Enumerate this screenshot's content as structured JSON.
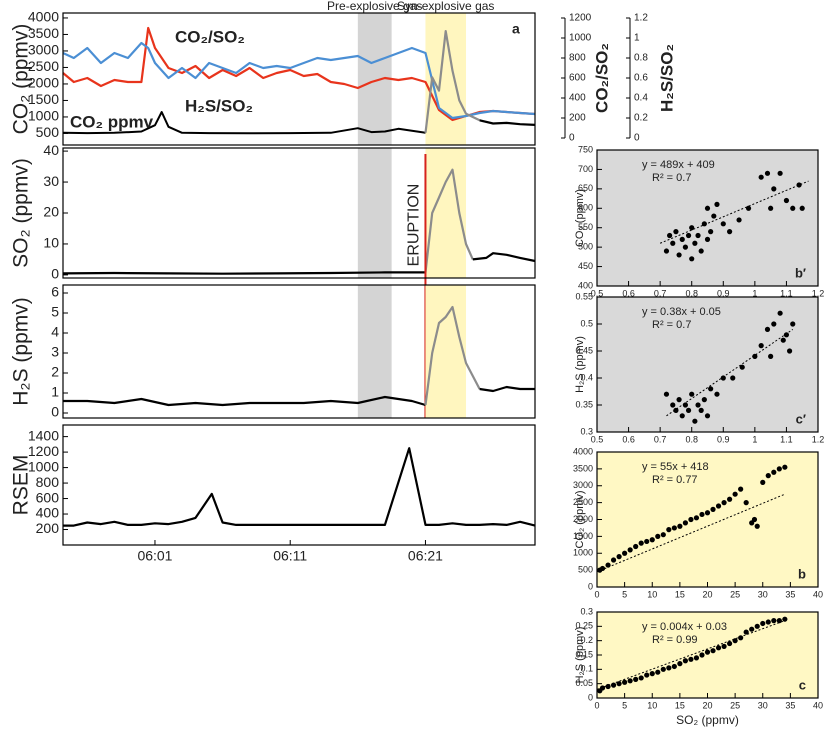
{
  "chart_data": [
    {
      "type": "line",
      "ylabel": "CO₂ (ppmv)",
      "panel_label": "a",
      "xlim": [
        354.2,
        389.1
      ],
      "ylim": [
        150,
        4150
      ],
      "yticks": [
        500,
        1000,
        1500,
        2000,
        2500,
        3000,
        3500,
        4000
      ],
      "y2lim": [
        -70,
        1250
      ],
      "y2ticks": [
        0,
        200,
        400,
        600,
        800,
        1000,
        1200
      ],
      "y2label": "CO₂/SO₂",
      "y3lim": [
        -0.07,
        1.25
      ],
      "y3ticks": [
        0,
        0.2,
        0.4,
        0.6,
        0.8,
        1,
        1.2
      ],
      "y3label": "H₂S/SO₂",
      "spans": [
        {
          "label": "Pre-explosive gas",
          "x": [
            376,
            378.5
          ],
          "color": "#d4d4d4"
        },
        {
          "label": "Syn-explosive gas",
          "x": [
            381,
            384
          ],
          "color": "#fff6bf"
        }
      ],
      "series": [
        {
          "name": "CO₂/SO₂",
          "color": "#e8341c",
          "axis": "y2",
          "x": [
            354.2,
            355,
            356,
            357,
            358,
            359,
            360,
            360.5,
            361,
            362,
            363,
            364,
            365,
            366,
            367,
            368,
            369,
            370,
            371,
            372,
            373,
            374,
            375,
            376,
            377,
            378,
            379,
            380,
            381,
            382,
            383,
            384,
            385,
            386,
            387,
            388,
            389.1
          ],
          "values": [
            650,
            560,
            600,
            520,
            580,
            560,
            560,
            1100,
            900,
            700,
            650,
            720,
            600,
            680,
            620,
            700,
            600,
            650,
            680,
            620,
            640,
            560,
            540,
            500,
            560,
            600,
            580,
            600,
            560,
            280,
            180,
            220,
            260,
            270,
            260,
            250,
            240
          ]
        },
        {
          "name": "H₂S/SO₂",
          "color": "#4b8fd4",
          "axis": "y3",
          "x": [
            354.2,
            355,
            356,
            357,
            358,
            359,
            360,
            360.5,
            361,
            362,
            363,
            364,
            365,
            366,
            367,
            368,
            369,
            370,
            371,
            372,
            373,
            374,
            375,
            376,
            377,
            378,
            379,
            380,
            381,
            382,
            383,
            384,
            385,
            386,
            387,
            388,
            389.1
          ],
          "values": [
            0.85,
            0.8,
            0.9,
            0.75,
            0.85,
            0.8,
            0.95,
            0.9,
            0.75,
            0.6,
            0.7,
            0.6,
            0.75,
            0.7,
            0.65,
            0.75,
            0.7,
            0.72,
            0.7,
            0.75,
            0.8,
            0.78,
            0.8,
            0.82,
            0.75,
            0.8,
            0.85,
            0.9,
            0.85,
            0.3,
            0.2,
            0.22,
            0.25,
            0.27,
            0.26,
            0.25,
            0.24
          ]
        },
        {
          "name": "CO₂ ppmv",
          "color": "#000000",
          "x": [
            354.2,
            356,
            358,
            360,
            361,
            361.5,
            362,
            363,
            365,
            368,
            371,
            374,
            376,
            377,
            378,
            379,
            380,
            381
          ],
          "values": [
            520,
            510,
            520,
            560,
            750,
            1150,
            700,
            520,
            510,
            505,
            510,
            520,
            660,
            540,
            560,
            640,
            580,
            520
          ]
        },
        {
          "color": "#8c8c8c",
          "x": [
            381,
            381.5,
            382,
            382.5,
            383,
            383.5,
            384,
            385
          ],
          "values": [
            520,
            2200,
            1800,
            3600,
            2400,
            1500,
            1100,
            900
          ]
        },
        {
          "color": "#000000",
          "x": [
            385,
            386,
            387,
            388,
            389.1
          ],
          "values": [
            900,
            800,
            820,
            780,
            760
          ]
        }
      ]
    },
    {
      "type": "line",
      "ylabel": "SO₂ (ppmv)",
      "xlim": [
        354.2,
        389.1
      ],
      "ylim": [
        -1,
        41
      ],
      "yticks": [
        0,
        10,
        20,
        30,
        40
      ],
      "event": {
        "label": "ERUPTION",
        "x": 381,
        "color": "#d6231c"
      },
      "series": [
        {
          "color": "#000000",
          "x": [
            354.2,
            358,
            362,
            366,
            370,
            374,
            378,
            381
          ],
          "values": [
            0.5,
            0.6,
            0.5,
            0.4,
            0.5,
            0.6,
            0.8,
            0.8
          ]
        },
        {
          "color": "#8c8c8c",
          "x": [
            381,
            381.5,
            382,
            382.5,
            383,
            383.5,
            384,
            384.5
          ],
          "values": [
            0.8,
            20,
            25,
            30,
            34,
            20,
            10,
            5
          ]
        },
        {
          "color": "#000000",
          "x": [
            384.5,
            385.5,
            386,
            387,
            388,
            389.1
          ],
          "values": [
            5,
            5.5,
            7,
            6.5,
            5.5,
            4.5
          ]
        }
      ]
    },
    {
      "type": "line",
      "ylabel": "H₂S (ppmv)",
      "xlim": [
        354.2,
        389.1
      ],
      "ylim": [
        -0.25,
        6.4
      ],
      "yticks": [
        0,
        1,
        2,
        3,
        4,
        5,
        6
      ],
      "series": [
        {
          "color": "#000000",
          "x": [
            354.2,
            356,
            358,
            360,
            362,
            364,
            366,
            368,
            370,
            372,
            374,
            376,
            378,
            380,
            381
          ],
          "values": [
            0.6,
            0.6,
            0.5,
            0.7,
            0.4,
            0.5,
            0.4,
            0.5,
            0.5,
            0.5,
            0.6,
            0.5,
            0.8,
            0.6,
            0.4
          ]
        },
        {
          "color": "#8c8c8c",
          "x": [
            381,
            381.5,
            382,
            382.5,
            383,
            383.5,
            384,
            385
          ],
          "values": [
            0.4,
            3,
            4.5,
            4.8,
            5.3,
            3.8,
            2.5,
            1.2
          ]
        },
        {
          "color": "#000000",
          "x": [
            385,
            386,
            387,
            388,
            389.1
          ],
          "values": [
            1.2,
            1.1,
            1.3,
            1.2,
            1.2
          ]
        }
      ]
    },
    {
      "type": "line",
      "ylabel": "RSEM",
      "xlim": [
        354.2,
        389.1
      ],
      "ylim": [
        0,
        1550
      ],
      "yticks": [
        200,
        400,
        600,
        800,
        1000,
        1200,
        1400
      ],
      "xticks": [
        {
          "value": 361,
          "label": "06:01"
        },
        {
          "value": 371,
          "label": "06:11"
        },
        {
          "value": 381,
          "label": "06:21"
        }
      ],
      "series": [
        {
          "color": "#000000",
          "x": [
            354.2,
            355,
            356,
            357,
            358,
            359,
            360,
            361,
            362,
            363,
            364,
            365.2,
            366,
            367,
            369,
            371,
            373,
            375,
            376.5,
            378,
            379.8,
            381,
            382,
            383,
            384,
            385,
            386,
            387,
            388,
            389.1
          ],
          "values": [
            250,
            250,
            290,
            270,
            300,
            260,
            260,
            280,
            270,
            300,
            350,
            660,
            290,
            260,
            260,
            260,
            260,
            260,
            260,
            260,
            1250,
            260,
            260,
            280,
            260,
            260,
            270,
            260,
            300,
            250
          ]
        }
      ]
    },
    {
      "type": "scatter",
      "ylabel": "CO₂ (ppmv)",
      "panel_label": "b′",
      "equation": "y = 489x + 409",
      "r2": "R² = 0.7",
      "background": "#d9d9d9",
      "xlim": [
        0.5,
        1.2
      ],
      "xticks": [
        0.5,
        0.6,
        0.7,
        0.8,
        0.9,
        1,
        1.1,
        1.2
      ],
      "ylim": [
        400,
        750
      ],
      "yticks": [
        400,
        450,
        500,
        550,
        600,
        650,
        700,
        750
      ],
      "x": [
        0.72,
        0.73,
        0.74,
        0.75,
        0.76,
        0.77,
        0.78,
        0.79,
        0.8,
        0.8,
        0.81,
        0.82,
        0.83,
        0.84,
        0.85,
        0.85,
        0.86,
        0.87,
        0.88,
        0.9,
        0.92,
        0.95,
        0.98,
        1.02,
        1.04,
        1.06,
        1.08,
        1.1,
        1.12,
        1.14,
        1.15,
        1.05
      ],
      "values": [
        490,
        530,
        510,
        540,
        480,
        520,
        500,
        530,
        470,
        550,
        510,
        530,
        490,
        560,
        520,
        600,
        540,
        580,
        610,
        560,
        540,
        570,
        600,
        680,
        690,
        650,
        690,
        620,
        600,
        660,
        600,
        600
      ],
      "fit": {
        "x": [
          0.7,
          1.17
        ],
        "y": [
          510,
          670
        ]
      }
    },
    {
      "type": "scatter",
      "ylabel": "H₂S (ppmv)",
      "panel_label": "c′",
      "equation": "y = 0.38x + 0.05",
      "r2": "R² = 0.7",
      "background": "#d9d9d9",
      "xlim": [
        0.5,
        1.2
      ],
      "xticks": [
        0.5,
        0.6,
        0.7,
        0.8,
        0.9,
        1,
        1.1,
        1.2
      ],
      "ylim": [
        0.3,
        0.55
      ],
      "yticks": [
        0.3,
        0.35,
        0.4,
        0.45,
        0.5,
        0.55
      ],
      "x": [
        0.72,
        0.74,
        0.75,
        0.76,
        0.77,
        0.78,
        0.79,
        0.8,
        0.81,
        0.82,
        0.83,
        0.84,
        0.85,
        0.86,
        0.88,
        0.9,
        0.93,
        0.96,
        1,
        1.02,
        1.04,
        1.05,
        1.06,
        1.08,
        1.09,
        1.1,
        1.11,
        1.12
      ],
      "values": [
        0.37,
        0.35,
        0.34,
        0.36,
        0.33,
        0.35,
        0.34,
        0.37,
        0.32,
        0.35,
        0.34,
        0.36,
        0.33,
        0.38,
        0.37,
        0.4,
        0.4,
        0.42,
        0.44,
        0.46,
        0.49,
        0.44,
        0.5,
        0.52,
        0.47,
        0.48,
        0.45,
        0.5
      ],
      "fit": {
        "x": [
          0.72,
          1.12
        ],
        "y": [
          0.33,
          0.49
        ]
      }
    },
    {
      "type": "scatter",
      "ylabel": "CO₂ (ppmv)",
      "panel_label": "b",
      "equation": "y = 55x + 418",
      "r2": "R² = 0.77",
      "background": "#fff8c4",
      "xlim": [
        0,
        40
      ],
      "xticks": [
        0,
        5,
        10,
        15,
        20,
        25,
        30,
        35,
        40
      ],
      "ylim": [
        0,
        4000
      ],
      "yticks": [
        0,
        500,
        1000,
        1500,
        2000,
        2500,
        3000,
        3500,
        4000
      ],
      "x": [
        0.5,
        1,
        2,
        3,
        4,
        5,
        6,
        7,
        8,
        9,
        10,
        11,
        12,
        13,
        14,
        15,
        16,
        17,
        18,
        19,
        20,
        21,
        22,
        23,
        24,
        25,
        26,
        27,
        28,
        29,
        28.5,
        30,
        31,
        32,
        33,
        34
      ],
      "values": [
        500,
        550,
        650,
        800,
        900,
        1000,
        1100,
        1200,
        1300,
        1350,
        1400,
        1500,
        1550,
        1700,
        1750,
        1800,
        1900,
        2000,
        2050,
        2150,
        2200,
        2300,
        2400,
        2500,
        2600,
        2750,
        2900,
        2500,
        1900,
        1800,
        2000,
        3100,
        3300,
        3400,
        3500,
        3550
      ],
      "fit": {
        "x": [
          0,
          34
        ],
        "y": [
          450,
          2750
        ]
      }
    },
    {
      "type": "scatter",
      "ylabel": "H₂S (ppmv)",
      "xlabel": "SO₂ (ppmv)",
      "panel_label": "c",
      "equation": "y = 0.004x + 0.03",
      "r2": "R² = 0.99",
      "background": "#fff8c4",
      "xlim": [
        0,
        40
      ],
      "xticks": [
        0,
        5,
        10,
        15,
        20,
        25,
        30,
        35,
        40
      ],
      "ylim": [
        0,
        0.3
      ],
      "yticks": [
        0,
        0.05,
        0.1,
        0.15,
        0.2,
        0.25,
        0.3
      ],
      "x": [
        0.5,
        1,
        2,
        3,
        4,
        5,
        6,
        7,
        8,
        9,
        10,
        11,
        12,
        13,
        14,
        15,
        16,
        17,
        18,
        19,
        20,
        21,
        22,
        23,
        24,
        25,
        26,
        27,
        28,
        29,
        30,
        31,
        32,
        33,
        34
      ],
      "values": [
        0.025,
        0.035,
        0.04,
        0.045,
        0.05,
        0.055,
        0.06,
        0.065,
        0.07,
        0.08,
        0.085,
        0.09,
        0.1,
        0.105,
        0.11,
        0.12,
        0.13,
        0.135,
        0.14,
        0.15,
        0.16,
        0.165,
        0.175,
        0.18,
        0.19,
        0.2,
        0.21,
        0.23,
        0.24,
        0.25,
        0.26,
        0.265,
        0.27,
        0.27,
        0.275
      ],
      "fit": {
        "x": [
          0,
          34
        ],
        "y": [
          0.03,
          0.27
        ]
      }
    }
  ]
}
